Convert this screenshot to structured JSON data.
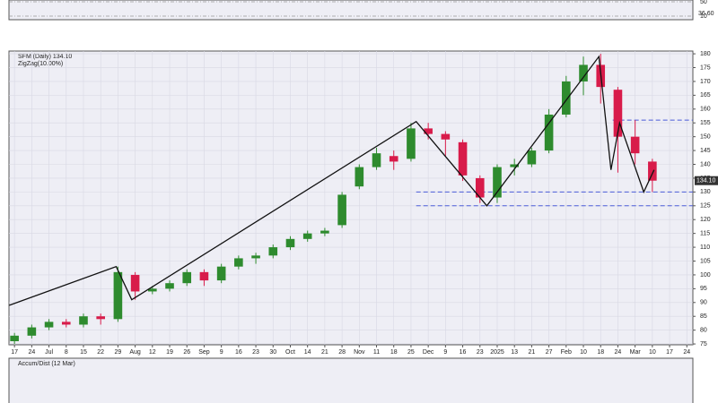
{
  "chart_data": {
    "type": "candlestick",
    "title": "SFM (Daily) 134.10",
    "indicator": "ZigZag(10.00%)",
    "last_price": {
      "value": 134.1,
      "label": "134.10"
    },
    "x": [
      0,
      1,
      2,
      3,
      4,
      5,
      6,
      7,
      8,
      9,
      10,
      11,
      12,
      13,
      14,
      15,
      16,
      17,
      18,
      19,
      20,
      21,
      22,
      23,
      24,
      25,
      26,
      27,
      28,
      29,
      30,
      31,
      32,
      33,
      34,
      35,
      36,
      37
    ],
    "open": [
      76,
      78,
      81,
      83,
      82,
      85,
      84,
      100,
      94,
      95,
      97,
      101,
      98,
      103,
      106,
      107,
      110,
      113,
      115,
      118,
      132,
      139,
      143,
      142,
      153,
      151,
      148,
      135,
      128,
      139,
      140,
      145,
      158,
      170,
      176,
      167,
      150,
      141
    ],
    "high": [
      79,
      82,
      84,
      84,
      86,
      86,
      103,
      101,
      96,
      98,
      102,
      102,
      104,
      107,
      108,
      111,
      114,
      116,
      117,
      130,
      140,
      146,
      145,
      155,
      155,
      152,
      149,
      136,
      140,
      142,
      146,
      160,
      172,
      179,
      180,
      168,
      156,
      142
    ],
    "low": [
      75,
      77,
      80,
      81,
      81,
      82,
      83,
      91,
      93,
      94,
      96,
      96,
      97,
      102,
      104,
      106,
      109,
      112,
      114,
      117,
      131,
      138,
      138,
      141,
      149,
      143,
      134,
      126,
      126,
      136,
      139,
      144,
      157,
      165,
      162,
      137,
      140,
      130
    ],
    "close": [
      78,
      81,
      83,
      82,
      85,
      84,
      101,
      94,
      95,
      97,
      101,
      98,
      103,
      106,
      107,
      110,
      113,
      115,
      116,
      129,
      139,
      144,
      141,
      153,
      151,
      149,
      136,
      128,
      139,
      140,
      145,
      158,
      170,
      176,
      168,
      150,
      144,
      134.1
    ],
    "up_color": "#2e8b2e",
    "down_color": "#d81b4a",
    "zigzag": {
      "x": [
        -0.3,
        5.9,
        6.8,
        23.3,
        27.4,
        33.9,
        34.6,
        35.1,
        36.5,
        37.1
      ],
      "y": [
        89,
        103,
        91,
        155.5,
        125,
        179,
        138,
        155,
        130,
        138
      ],
      "color": "#111111"
    },
    "levels": [
      156,
      130,
      125
    ],
    "level_color": "#4a5bd8",
    "xlim": [
      -0.32,
      39.35
    ],
    "ylim": [
      74.7,
      181
    ],
    "xticks": [
      {
        "value": 0,
        "label": "17"
      },
      {
        "value": 1,
        "label": "24"
      },
      {
        "value": 2,
        "label": "Jul"
      },
      {
        "value": 3,
        "label": "8"
      },
      {
        "value": 4,
        "label": "15"
      },
      {
        "value": 5,
        "label": "22"
      },
      {
        "value": 6,
        "label": "29"
      },
      {
        "value": 7,
        "label": "Aug"
      },
      {
        "value": 8,
        "label": "12"
      },
      {
        "value": 9,
        "label": "19"
      },
      {
        "value": 10,
        "label": "26"
      },
      {
        "value": 11,
        "label": "Sep"
      },
      {
        "value": 12,
        "label": "9"
      },
      {
        "value": 13,
        "label": "16"
      },
      {
        "value": 14,
        "label": "23"
      },
      {
        "value": 15,
        "label": "30"
      },
      {
        "value": 16,
        "label": "Oct"
      },
      {
        "value": 17,
        "label": "14"
      },
      {
        "value": 18,
        "label": "21"
      },
      {
        "value": 19,
        "label": "28"
      },
      {
        "value": 20,
        "label": "Nov"
      },
      {
        "value": 21,
        "label": "11"
      },
      {
        "value": 22,
        "label": "18"
      },
      {
        "value": 23,
        "label": "25"
      },
      {
        "value": 24,
        "label": "Dec"
      },
      {
        "value": 25,
        "label": "9"
      },
      {
        "value": 26,
        "label": "16"
      },
      {
        "value": 27,
        "label": "23"
      },
      {
        "value": 28,
        "label": "2025"
      },
      {
        "value": 29,
        "label": "13"
      },
      {
        "value": 30,
        "label": "21"
      },
      {
        "value": 31,
        "label": "27"
      },
      {
        "value": 32,
        "label": "Feb"
      },
      {
        "value": 33,
        "label": "10"
      },
      {
        "value": 34,
        "label": "18"
      },
      {
        "value": 35,
        "label": "24"
      },
      {
        "value": 36,
        "label": "Mar"
      },
      {
        "value": 37,
        "label": "10"
      },
      {
        "value": 38,
        "label": "17"
      },
      {
        "value": 39,
        "label": "24"
      }
    ],
    "yticks": [
      75,
      80,
      85,
      90,
      95,
      100,
      105,
      110,
      115,
      120,
      125,
      130,
      135,
      140,
      145,
      150,
      155,
      160,
      165,
      170,
      175,
      180
    ],
    "grid": true
  },
  "rsi_panel": {
    "ticks": [
      50,
      10
    ],
    "value_label": "36.60"
  },
  "ad_panel": {
    "title": "Accum/Dist (12 Mar)"
  }
}
